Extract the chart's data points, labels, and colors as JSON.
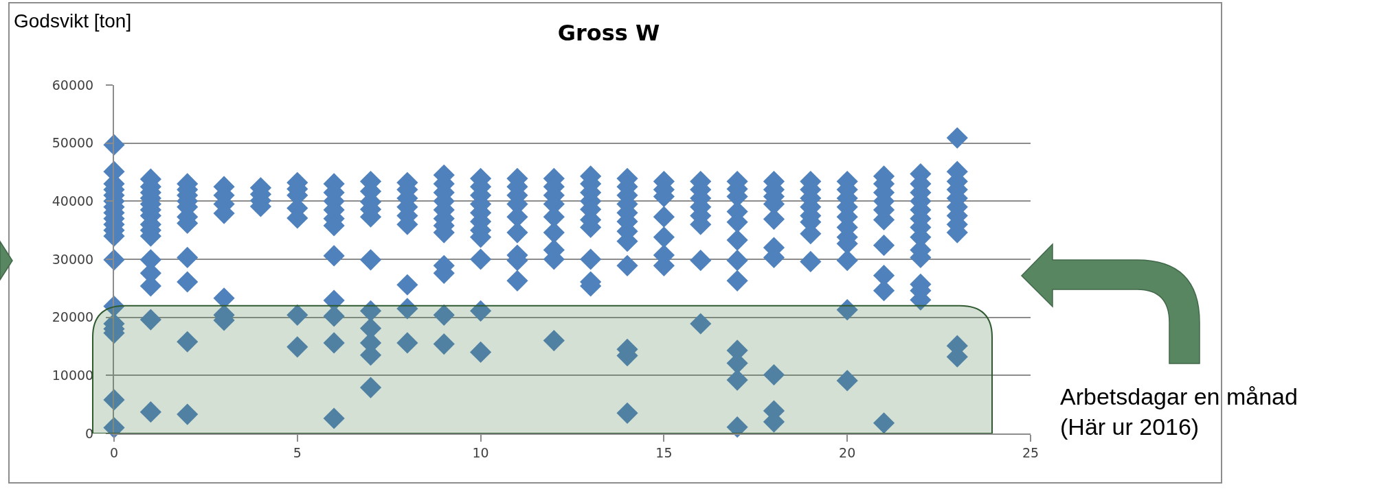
{
  "chart_data": {
    "type": "scatter",
    "title": "Gross W",
    "ylabel": "Godsvikt [ton]",
    "xlabel": "Arbetsdagar en månad\n(Här ur 2016)",
    "xlim": [
      0,
      25
    ],
    "xticks": [
      0,
      5,
      10,
      15,
      20,
      25
    ],
    "ylim": [
      0,
      60000
    ],
    "yticks": [
      0,
      10000,
      20000,
      30000,
      40000,
      50000,
      60000
    ],
    "grid": "y",
    "marker": "diamond",
    "bands": [
      {
        "axis": "y",
        "from": 0,
        "to": 22000,
        "color": "#548254"
      }
    ],
    "series": [
      {
        "color": "#4f81bd",
        "x": [
          0,
          0,
          0,
          0,
          0,
          0,
          0,
          0,
          0,
          0,
          0,
          0,
          0,
          0,
          0,
          0,
          0,
          0,
          0,
          1,
          1,
          1,
          1,
          1,
          1,
          1,
          1,
          1,
          1,
          1,
          1,
          1,
          1,
          1,
          2,
          2,
          2,
          2,
          2,
          2,
          2,
          2,
          2,
          2,
          2,
          3,
          3,
          3,
          3,
          3,
          3,
          3,
          4,
          4,
          4,
          4,
          5,
          5,
          5,
          5,
          5,
          5,
          5,
          6,
          6,
          6,
          6,
          6,
          6,
          6,
          6,
          6,
          6,
          6,
          7,
          7,
          7,
          7,
          7,
          7,
          7,
          7,
          7,
          7,
          7,
          8,
          8,
          8,
          8,
          8,
          8,
          8,
          8,
          8,
          9,
          9,
          9,
          9,
          9,
          9,
          9,
          9,
          9,
          9,
          9,
          9,
          10,
          10,
          10,
          10,
          10,
          10,
          10,
          10,
          10,
          10,
          10,
          11,
          11,
          11,
          11,
          11,
          11,
          11,
          11,
          11,
          12,
          12,
          12,
          12,
          12,
          12,
          12,
          12,
          12,
          13,
          13,
          13,
          13,
          13,
          13,
          13,
          13,
          13,
          13,
          14,
          14,
          14,
          14,
          14,
          14,
          14,
          14,
          14,
          14,
          14,
          14,
          15,
          15,
          15,
          15,
          15,
          15,
          15,
          16,
          16,
          16,
          16,
          16,
          16,
          16,
          16,
          17,
          17,
          17,
          17,
          17,
          17,
          17,
          17,
          17,
          17,
          17,
          17,
          18,
          18,
          18,
          18,
          18,
          18,
          18,
          18,
          18,
          18,
          19,
          19,
          19,
          19,
          19,
          19,
          19,
          19,
          20,
          20,
          20,
          20,
          20,
          20,
          20,
          20,
          20,
          20,
          20,
          21,
          21,
          21,
          21,
          21,
          21,
          21,
          21,
          21,
          21,
          22,
          22,
          22,
          22,
          22,
          22,
          22,
          22,
          22,
          22,
          22,
          22,
          22,
          23,
          23,
          23,
          23,
          23,
          23,
          23,
          23,
          23,
          23,
          23
        ],
        "values": [
          49700,
          45100,
          43000,
          42000,
          41000,
          40000,
          39000,
          38000,
          37000,
          36000,
          35000,
          34000,
          29900,
          21900,
          18900,
          18000,
          17300,
          5800,
          1000,
          43800,
          42500,
          41500,
          40500,
          39500,
          38500,
          37500,
          36000,
          35000,
          34000,
          29900,
          27600,
          25400,
          19600,
          3700,
          43000,
          42000,
          41000,
          40000,
          39000,
          37300,
          36200,
          30300,
          26100,
          15800,
          3300,
          42500,
          41000,
          39500,
          37900,
          23300,
          20400,
          19500,
          42300,
          41200,
          40100,
          39100,
          43200,
          42100,
          41000,
          38800,
          37100,
          20400,
          14900,
          43000,
          41500,
          40000,
          38500,
          37000,
          35800,
          30600,
          22900,
          20200,
          15600,
          2600,
          43400,
          41700,
          39900,
          38600,
          37300,
          29900,
          21100,
          18100,
          15600,
          13500,
          7900,
          43200,
          42000,
          40500,
          39000,
          37500,
          36000,
          25600,
          21500,
          15600,
          44500,
          43000,
          41500,
          40000,
          38500,
          37000,
          35800,
          34600,
          28900,
          27600,
          20400,
          15400,
          43900,
          42500,
          41000,
          39500,
          38000,
          36500,
          35000,
          33800,
          30000,
          21100,
          14000,
          43900,
          42500,
          41000,
          39500,
          37300,
          34600,
          30700,
          29800,
          26300,
          43900,
          42500,
          41000,
          39500,
          37300,
          34600,
          31600,
          30000,
          16000,
          44300,
          43000,
          41500,
          40000,
          38600,
          36800,
          35500,
          30000,
          26100,
          25400,
          43900,
          42500,
          41000,
          39500,
          38000,
          36500,
          34800,
          33100,
          28900,
          14500,
          13400,
          3500,
          43400,
          42000,
          40800,
          37300,
          33800,
          30700,
          28900,
          43400,
          42000,
          40500,
          39000,
          37500,
          36000,
          29800,
          18900,
          43400,
          42100,
          40800,
          38200,
          36400,
          33300,
          29800,
          26300,
          14300,
          12100,
          9200,
          1100,
          43400,
          42000,
          40800,
          39500,
          36900,
          32000,
          30300,
          10100,
          3900,
          2000,
          43400,
          42000,
          40500,
          39000,
          37500,
          36400,
          34400,
          29600,
          43400,
          42000,
          40500,
          39000,
          37300,
          35500,
          33800,
          32700,
          29800,
          21300,
          9100,
          44300,
          43000,
          41500,
          40000,
          38500,
          36800,
          32400,
          27200,
          24600,
          1800,
          44700,
          43000,
          41500,
          40000,
          38500,
          37000,
          35500,
          33800,
          31600,
          30300,
          25700,
          24600,
          23000,
          50900,
          45100,
          43400,
          42000,
          40500,
          39000,
          37500,
          36000,
          34600,
          15100,
          13200
        ]
      }
    ]
  }
}
